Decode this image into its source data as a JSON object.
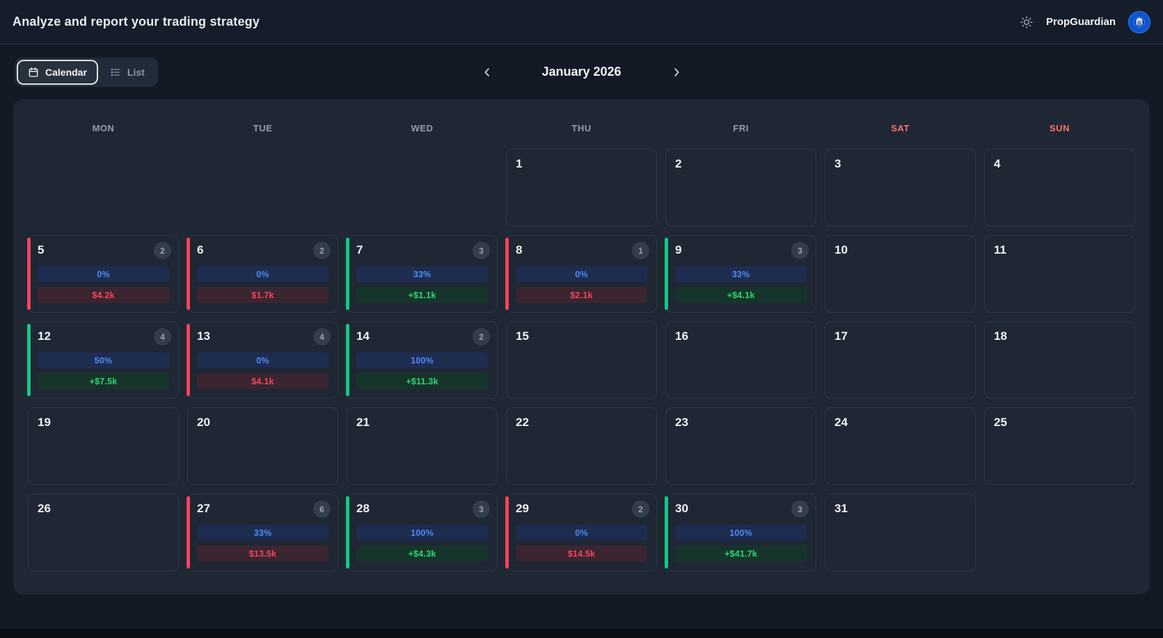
{
  "header": {
    "title": "Analyze and report your trading strategy",
    "brand": "PropGuardian"
  },
  "view_toggle": {
    "calendar_label": "Calendar",
    "list_label": "List",
    "active": "calendar"
  },
  "month_nav": {
    "label": "January 2026"
  },
  "calendar": {
    "weekday_headers": [
      "MON",
      "TUE",
      "WED",
      "THU",
      "FRI",
      "SAT",
      "SUN"
    ],
    "weeks": [
      [
        null,
        null,
        null,
        {
          "day": 1
        },
        {
          "day": 2
        },
        {
          "day": 3
        },
        {
          "day": 4
        }
      ],
      [
        {
          "day": 5,
          "trades": 2,
          "win_rate": "0%",
          "pnl": "$4.2k",
          "result": "loss"
        },
        {
          "day": 6,
          "trades": 2,
          "win_rate": "0%",
          "pnl": "$1.7k",
          "result": "loss"
        },
        {
          "day": 7,
          "trades": 3,
          "win_rate": "33%",
          "pnl": "+$1.1k",
          "result": "win"
        },
        {
          "day": 8,
          "trades": 1,
          "win_rate": "0%",
          "pnl": "$2.1k",
          "result": "loss"
        },
        {
          "day": 9,
          "trades": 3,
          "win_rate": "33%",
          "pnl": "+$4.1k",
          "result": "win"
        },
        {
          "day": 10
        },
        {
          "day": 11
        }
      ],
      [
        {
          "day": 12,
          "trades": 4,
          "win_rate": "50%",
          "pnl": "+$7.5k",
          "result": "win"
        },
        {
          "day": 13,
          "trades": 4,
          "win_rate": "0%",
          "pnl": "$4.1k",
          "result": "loss"
        },
        {
          "day": 14,
          "trades": 2,
          "win_rate": "100%",
          "pnl": "+$11.3k",
          "result": "win"
        },
        {
          "day": 15
        },
        {
          "day": 16
        },
        {
          "day": 17
        },
        {
          "day": 18
        }
      ],
      [
        {
          "day": 19
        },
        {
          "day": 20
        },
        {
          "day": 21
        },
        {
          "day": 22
        },
        {
          "day": 23
        },
        {
          "day": 24
        },
        {
          "day": 25
        }
      ],
      [
        {
          "day": 26
        },
        {
          "day": 27,
          "trades": 6,
          "win_rate": "33%",
          "pnl": "$13.5k",
          "result": "loss"
        },
        {
          "day": 28,
          "trades": 3,
          "win_rate": "100%",
          "pnl": "+$4.3k",
          "result": "win"
        },
        {
          "day": 29,
          "trades": 2,
          "win_rate": "0%",
          "pnl": "$14.5k",
          "result": "loss"
        },
        {
          "day": 30,
          "trades": 3,
          "win_rate": "100%",
          "pnl": "+$41.7k",
          "result": "win"
        },
        {
          "day": 31
        },
        null
      ]
    ]
  },
  "colors": {
    "win_accent": "#12c984",
    "loss_accent": "#f4445c",
    "win_text": "#2bd674",
    "loss_text": "#f4445c",
    "win_rate_text": "#4c8cf6",
    "win_rate_bg": "#1e2c50",
    "weekend_header": "#f87171",
    "panel_bg": "#1f2734",
    "page_bg": "#131a26"
  }
}
